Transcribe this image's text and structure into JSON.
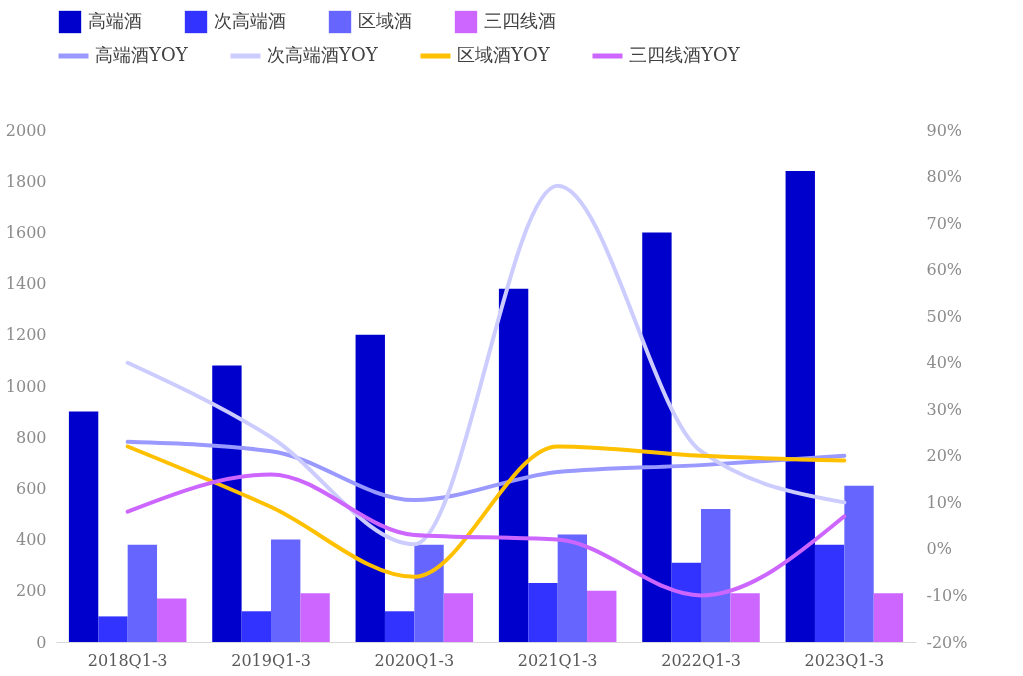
{
  "chart_data": {
    "type": "bar",
    "categories": [
      "2018Q1-3",
      "2019Q1-3",
      "2020Q1-3",
      "2021Q1-3",
      "2022Q1-3",
      "2023Q1-3"
    ],
    "ylim": [
      0,
      2000
    ],
    "yticks": [
      0,
      200,
      400,
      600,
      800,
      1000,
      1200,
      1400,
      1600,
      1800,
      2000
    ],
    "y2lim": [
      -20,
      90
    ],
    "y2ticks": [
      {
        "value": -20,
        "label": "-20%"
      },
      {
        "value": -10,
        "label": "-10%"
      },
      {
        "value": 0,
        "label": "0%"
      },
      {
        "value": 10,
        "label": "10%"
      },
      {
        "value": 20,
        "label": "20%"
      },
      {
        "value": 30,
        "label": "30%"
      },
      {
        "value": 40,
        "label": "40%"
      },
      {
        "value": 50,
        "label": "50%"
      },
      {
        "value": 60,
        "label": "60%"
      },
      {
        "value": 70,
        "label": "70%"
      },
      {
        "value": 80,
        "label": "80%"
      },
      {
        "value": 90,
        "label": "90%"
      }
    ],
    "grid": false,
    "legend": "top",
    "line_style": "solid",
    "marker": "none",
    "series": [
      {
        "name": "高端酒",
        "color": "#0000cc",
        "values": [
          900,
          1080,
          1200,
          1380,
          1600,
          1840
        ]
      },
      {
        "name": "次高端酒",
        "color": "#3333ff",
        "values": [
          100,
          120,
          120,
          230,
          310,
          380
        ]
      },
      {
        "name": "区域酒",
        "color": "#6666ff",
        "values": [
          380,
          400,
          380,
          420,
          520,
          610
        ]
      },
      {
        "name": "三四线酒",
        "color": "#cc66ff",
        "values": [
          170,
          190,
          190,
          200,
          190,
          190
        ]
      },
      {
        "name": "高端酒YOY",
        "type": "line",
        "axis": "y2",
        "color": "#9999ff",
        "values": [
          23,
          21,
          10.5,
          16.5,
          18,
          20
        ]
      },
      {
        "name": "次高端酒YOY",
        "type": "line",
        "axis": "y2",
        "color": "#ccccff",
        "values": [
          40,
          24,
          1,
          78,
          21,
          10
        ]
      },
      {
        "name": "区域酒YOY",
        "type": "line",
        "axis": "y2",
        "color": "#ffc000",
        "values": [
          22,
          9,
          -6,
          22,
          20,
          19
        ]
      },
      {
        "name": "三四线酒YOY",
        "type": "line",
        "axis": "y2",
        "color": "#cc66ff",
        "values": [
          8,
          16,
          3,
          2,
          -10,
          7
        ]
      }
    ]
  }
}
